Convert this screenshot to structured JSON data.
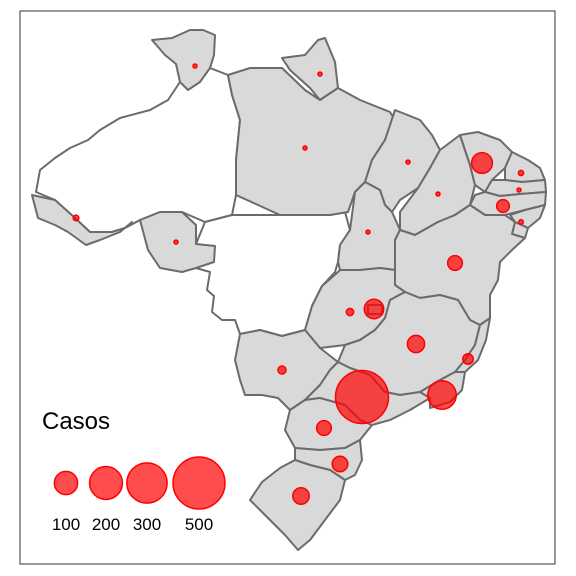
{
  "map": {
    "region_fill": "#d9d9d9",
    "empty_fill": "#ffffff",
    "border_color": "#6b6b6b",
    "frame_color": "#333333"
  },
  "marker": {
    "fill": "#ff0000",
    "fill_opacity": 0.7,
    "stroke": "#ff0000"
  },
  "legend": {
    "title": "Casos",
    "items": [
      {
        "label": "100",
        "value": 100
      },
      {
        "label": "200",
        "value": 200
      },
      {
        "label": "300",
        "value": 300
      },
      {
        "label": "500",
        "value": 500
      }
    ]
  },
  "cases": [
    {
      "state": "RR",
      "value": 1
    },
    {
      "state": "AP",
      "value": 1
    },
    {
      "state": "PA",
      "value": 2
    },
    {
      "state": "MA",
      "value": 3
    },
    {
      "state": "CE",
      "value": 80
    },
    {
      "state": "RN",
      "value": 5
    },
    {
      "state": "PB",
      "value": 1
    },
    {
      "state": "PE",
      "value": 30
    },
    {
      "state": "AL",
      "value": 4
    },
    {
      "state": "PI",
      "value": 2
    },
    {
      "state": "AC",
      "value": 6
    },
    {
      "state": "RO",
      "value": 1
    },
    {
      "state": "TO",
      "value": 1
    },
    {
      "state": "BA",
      "value": 40
    },
    {
      "state": "GO",
      "value": 10
    },
    {
      "state": "DF",
      "value": 70
    },
    {
      "state": "MG",
      "value": 55
    },
    {
      "state": "ES",
      "value": 20
    },
    {
      "state": "MS",
      "value": 12
    },
    {
      "state": "SP",
      "value": 520
    },
    {
      "state": "RJ",
      "value": 150
    },
    {
      "state": "PR",
      "value": 40
    },
    {
      "state": "SC",
      "value": 45
    },
    {
      "state": "RS",
      "value": 50
    }
  ]
}
